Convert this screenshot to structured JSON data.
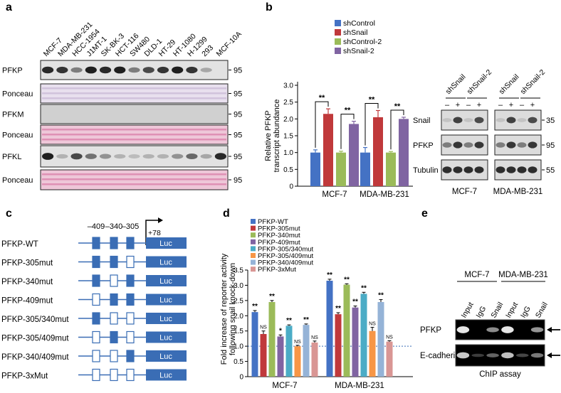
{
  "panel_labels": {
    "a": "a",
    "b": "b",
    "c": "c",
    "d": "d",
    "e": "e"
  },
  "panel_a": {
    "lanes": [
      "MCF-7",
      "MDA-MB-231",
      "HCC-1954",
      "J1MT-1",
      "SK-BK-3",
      "HCT-116",
      "SW480",
      "DLD-1",
      "HT-29",
      "HT-1080",
      "H-1299",
      "293",
      "MCF-10A"
    ],
    "rows": [
      {
        "label": "PFKP",
        "mw": "95",
        "style": "blot",
        "intensity": [
          0.9,
          0.85,
          0.5,
          0.95,
          0.9,
          0.95,
          0.5,
          0.75,
          0.85,
          0.95,
          0.85,
          0.3,
          0
        ]
      },
      {
        "label": "Ponceau",
        "mw": "95",
        "style": "ponceau-faint"
      },
      {
        "label": "PFKM",
        "mw": "95",
        "style": "blank"
      },
      {
        "label": "Ponceau",
        "mw": "95",
        "style": "ponceau"
      },
      {
        "label": "PFKL",
        "mw": "95",
        "style": "blot",
        "intensity": [
          0.95,
          0.25,
          0.75,
          0.55,
          0.4,
          0.25,
          0.2,
          0.25,
          0.25,
          0.4,
          0.6,
          0.3,
          0.9
        ]
      },
      {
        "label": "Ponceau",
        "mw": "95",
        "style": "ponceau"
      }
    ]
  },
  "chart_data": [
    {
      "type": "bar",
      "panel": "b",
      "ylabel": "Relative PFKP transcript abundance",
      "ylim": [
        0,
        3.0
      ],
      "yticks": [
        "0",
        "0.5",
        "1.0",
        "1.5",
        "2.0",
        "2.5",
        "3.0"
      ],
      "categories": [
        "MCF-7",
        "MDA-MB-231"
      ],
      "series": [
        {
          "name": "shControl",
          "color": "#4472c4",
          "values": [
            1.0,
            1.0
          ],
          "errors": [
            0.08,
            0.15
          ]
        },
        {
          "name": "shSnail",
          "color": "#c0393b",
          "values": [
            2.15,
            2.05
          ],
          "errors": [
            0.15,
            0.2
          ]
        },
        {
          "name": "shControl-2",
          "color": "#9bbb59",
          "values": [
            1.0,
            1.0
          ],
          "errors": [
            0.04,
            0.03
          ]
        },
        {
          "name": "shSnail-2",
          "color": "#8064a2",
          "values": [
            1.85,
            2.0
          ],
          "errors": [
            0.08,
            0.05
          ]
        }
      ],
      "significance": [
        "**",
        "**",
        "**",
        "**"
      ]
    },
    {
      "type": "bar",
      "panel": "d",
      "ylabel": "Fold increase of reporter activity following snail knock-down",
      "ylim": [
        0,
        3.5
      ],
      "yticks": [
        "0",
        "0.5",
        "1.0",
        "1.5",
        "2.0",
        "2.5",
        "3.0",
        "3.5"
      ],
      "categories": [
        "MCF-7",
        "MDA-MB-231"
      ],
      "series": [
        {
          "name": "PFKP-WT",
          "color": "#4472c4",
          "values": [
            2.12,
            3.15
          ],
          "errors": [
            0.05,
            0.05
          ],
          "sig": [
            "**",
            "**"
          ]
        },
        {
          "name": "PFKP-305mut",
          "color": "#c0393b",
          "values": [
            1.4,
            2.05
          ],
          "errors": [
            0.1,
            0.05
          ],
          "sig": [
            "NS",
            "**"
          ]
        },
        {
          "name": "PFKP-340mut",
          "color": "#9bbb59",
          "values": [
            2.45,
            3.02
          ],
          "errors": [
            0.05,
            0.03
          ],
          "sig": [
            "**",
            "**"
          ]
        },
        {
          "name": "PFKP-409mut",
          "color": "#8064a2",
          "values": [
            1.32,
            2.27
          ],
          "errors": [
            0.05,
            0.05
          ],
          "sig": [
            "*",
            "**"
          ]
        },
        {
          "name": "PFKP-305/340mut",
          "color": "#4bacc6",
          "values": [
            1.67,
            2.72
          ],
          "errors": [
            0.03,
            0.05
          ],
          "sig": [
            "**",
            "**"
          ]
        },
        {
          "name": "PFKP-305/409mut",
          "color": "#f79646",
          "values": [
            1.0,
            1.5
          ],
          "errors": [
            0.03,
            0.12
          ],
          "sig": [
            "NS",
            "NS"
          ]
        },
        {
          "name": "PFKP-340/409mut",
          "color": "#95b3d7",
          "values": [
            1.7,
            2.45
          ],
          "errors": [
            0.03,
            0.08
          ],
          "sig": [
            "**",
            "**"
          ]
        },
        {
          "name": "PFKP-3xMut",
          "color": "#d99694",
          "values": [
            1.12,
            1.15
          ],
          "errors": [
            0.05,
            0.03
          ],
          "sig": [
            "NS",
            "NS"
          ]
        }
      ]
    }
  ],
  "panel_b_blot": {
    "groups": [
      {
        "cell": "MCF-7",
        "labels": [
          "shSnail",
          "shSnail-2"
        ]
      },
      {
        "cell": "MDA-MB-231",
        "labels": [
          "shSnail",
          "shSnail-2"
        ]
      }
    ],
    "signs": [
      "–",
      "+",
      "–",
      "+"
    ],
    "rows": [
      {
        "label": "Snail",
        "mw": "35"
      },
      {
        "label": "PFKP",
        "mw": "95"
      },
      {
        "label": "Tubulin",
        "mw": "55"
      }
    ]
  },
  "panel_c": {
    "positions": [
      "–409",
      "–340",
      "–305"
    ],
    "tss": "+78",
    "luc": "Luc",
    "constructs": [
      {
        "name": "PFKP-WT",
        "boxes": [
          1,
          1,
          1
        ]
      },
      {
        "name": "PFKP-305mut",
        "boxes": [
          1,
          1,
          0
        ]
      },
      {
        "name": "PFKP-340mut",
        "boxes": [
          1,
          0,
          1
        ]
      },
      {
        "name": "PFKP-409mut",
        "boxes": [
          0,
          1,
          1
        ]
      },
      {
        "name": "PFKP-305/340mut",
        "boxes": [
          1,
          0,
          0
        ]
      },
      {
        "name": "PFKP-305/409mut",
        "boxes": [
          0,
          1,
          0
        ]
      },
      {
        "name": "PFKP-340/409mut",
        "boxes": [
          0,
          0,
          1
        ]
      },
      {
        "name": "PFKP-3xMut",
        "boxes": [
          0,
          0,
          0
        ]
      }
    ]
  },
  "panel_e": {
    "cells": [
      "MCF-7",
      "MDA-MB-231"
    ],
    "lanes": [
      "Input",
      "IgG",
      "Snail",
      "Input",
      "IgG",
      "Snail"
    ],
    "rows": [
      "PFKP",
      "E-cadherin"
    ],
    "caption": "ChIP assay"
  }
}
